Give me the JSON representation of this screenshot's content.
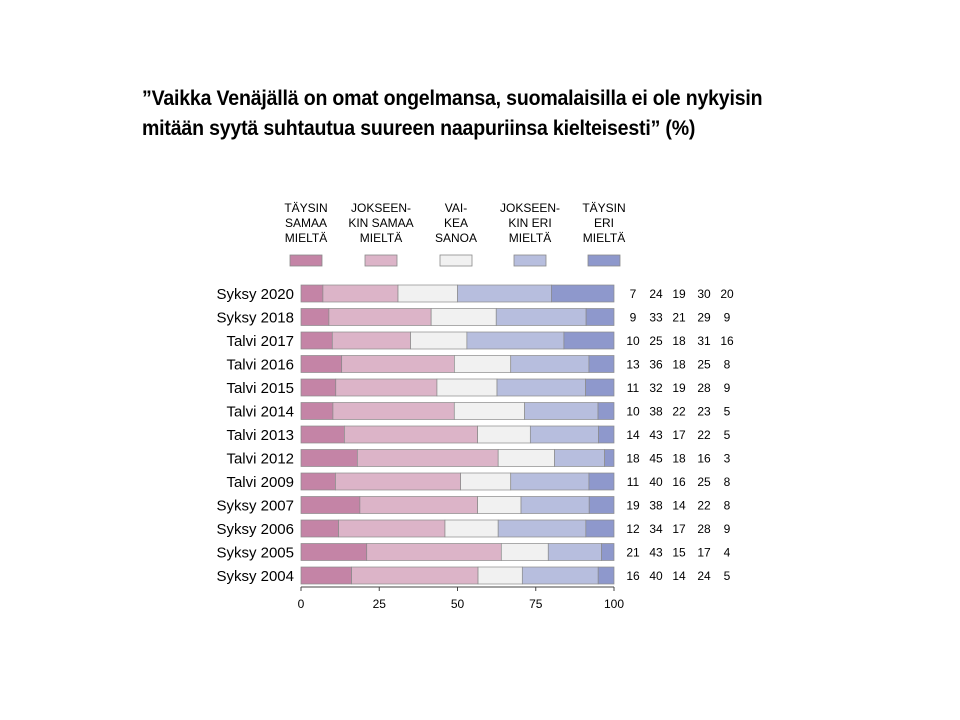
{
  "title_lines": [
    "”Vaikka Venäjällä on omat ongelmansa, suomalaisilla ei ole nykyisin",
    "mitään syytä suhtautua suureen naapuriinsa kielteisesti” (%)"
  ],
  "colors": {
    "taysin_samaa": "#c484a6",
    "jokseenkin_samaa": "#dcb4c8",
    "vaikea_sanoa": "#f1f1f1",
    "jokseenkin_eri": "#b7bede",
    "taysin_eri": "#8e98cc",
    "stroke": "#8a8a8a"
  },
  "chart_data": {
    "type": "bar",
    "orientation": "horizontal",
    "stacked": true,
    "title": "”Vaikka Venäjällä on omat ongelmansa, suomalaisilla ei ole nykyisin mitään syytä suhtautua suureen naapuriinsa kielteisesti” (%)",
    "categories": [
      "Syksy 2020",
      "Syksy 2018",
      "Talvi 2017",
      "Talvi 2016",
      "Talvi 2015",
      "Talvi 2014",
      "Talvi 2013",
      "Talvi 2012",
      "Talvi 2009",
      "Syksy 2007",
      "Syksy 2006",
      "Syksy 2005",
      "Syksy 2004"
    ],
    "series": [
      {
        "name": [
          "TÄYSIN",
          "SAMAA",
          "MIELTÄ"
        ],
        "color_key": "taysin_samaa",
        "values": [
          7,
          9,
          10,
          13,
          11,
          10,
          14,
          18,
          11,
          19,
          12,
          21,
          16
        ]
      },
      {
        "name": [
          "JOKSEEN-",
          "KIN SAMAA",
          "MIELTÄ"
        ],
        "color_key": "jokseenkin_samaa",
        "values": [
          24,
          33,
          25,
          36,
          32,
          38,
          43,
          45,
          40,
          38,
          34,
          43,
          40
        ]
      },
      {
        "name": [
          "VAI-",
          "KEA",
          "SANOA"
        ],
        "color_key": "vaikea_sanoa",
        "values": [
          19,
          21,
          18,
          18,
          19,
          22,
          17,
          18,
          16,
          14,
          17,
          15,
          14
        ]
      },
      {
        "name": [
          "JOKSEEN-",
          "KIN ERI",
          "MIELTÄ"
        ],
        "color_key": "jokseenkin_eri",
        "values": [
          30,
          29,
          31,
          25,
          28,
          23,
          22,
          16,
          25,
          22,
          28,
          17,
          24
        ]
      },
      {
        "name": [
          "TÄYSIN",
          "ERI",
          "MIELTÄ"
        ],
        "color_key": "taysin_eri",
        "values": [
          20,
          9,
          16,
          8,
          9,
          5,
          5,
          3,
          8,
          8,
          9,
          4,
          5
        ]
      }
    ],
    "xlim": [
      0,
      100
    ],
    "xticks": [
      0,
      25,
      50,
      75,
      100
    ],
    "legend_position": "top",
    "grid": false
  }
}
